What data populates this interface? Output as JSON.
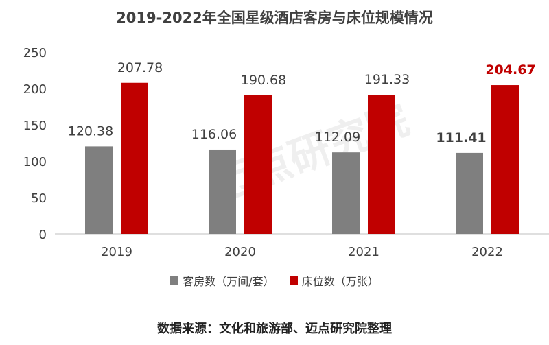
{
  "chart_data": {
    "type": "bar",
    "title": "2019-2022年全国星级酒店客房与床位规模情况",
    "categories": [
      "2019",
      "2020",
      "2021",
      "2022"
    ],
    "series": [
      {
        "name": "客房数（万间/套）",
        "color": "#7f7f7f",
        "values": [
          120.38,
          116.06,
          112.09,
          111.41
        ]
      },
      {
        "name": "床位数（万张）",
        "color": "#c00000",
        "values": [
          207.78,
          190.68,
          191.33,
          204.67
        ]
      }
    ],
    "xlabel": "",
    "ylabel": "",
    "ylim": [
      0,
      250
    ],
    "yticks": [
      0,
      50,
      100,
      150,
      200,
      250
    ],
    "grid": false,
    "legend_position": "bottom",
    "highlight_category": "2022",
    "highlight_label_colors": [
      "#404040",
      "#c00000"
    ]
  },
  "watermark": "迈点研究院 MEADIN ACADEMY",
  "source": "数据来源：文化和旅游部、迈点研究院整理"
}
